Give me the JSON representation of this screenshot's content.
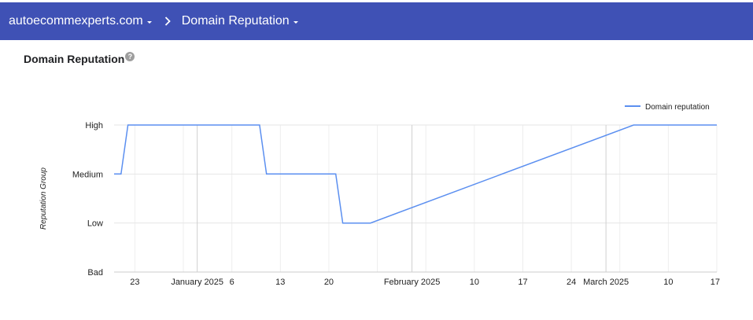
{
  "topbar": {
    "domain": "autoecommexperts.com",
    "separator": ">",
    "section": "Domain Reputation"
  },
  "card": {
    "title": "Domain Reputation",
    "help_icon": "help-circle-icon",
    "help_glyph": "?"
  },
  "colors": {
    "topbar": "#3f51b5",
    "series": "#5b8ff0",
    "grid": "#e6e6e6"
  },
  "chart_data": {
    "type": "line",
    "title": "",
    "ylabel": "Reputation Group",
    "xlabel": "",
    "y_categories": [
      "Bad",
      "Low",
      "Medium",
      "High"
    ],
    "x_range": [
      "2024-12-20",
      "2025-03-17"
    ],
    "x_ticks": [
      {
        "date": "2024-12-23",
        "label": "23"
      },
      {
        "date": "2025-01-01",
        "label": "January 2025"
      },
      {
        "date": "2025-01-06",
        "label": "6"
      },
      {
        "date": "2025-01-13",
        "label": "13"
      },
      {
        "date": "2025-01-20",
        "label": "20"
      },
      {
        "date": "2025-02-01",
        "label": "February 2025"
      },
      {
        "date": "2025-02-10",
        "label": "10"
      },
      {
        "date": "2025-02-17",
        "label": "17"
      },
      {
        "date": "2025-02-24",
        "label": "24"
      },
      {
        "date": "2025-03-01",
        "label": "March 2025"
      },
      {
        "date": "2025-03-10",
        "label": "10"
      },
      {
        "date": "2025-03-17",
        "label": "17"
      }
    ],
    "legend": {
      "position": "top-right"
    },
    "series": [
      {
        "name": "Domain reputation",
        "points": [
          {
            "x": "2024-12-20",
            "y": "Medium"
          },
          {
            "x": "2024-12-21",
            "y": "Medium"
          },
          {
            "x": "2024-12-22",
            "y": "High"
          },
          {
            "x": "2025-01-10",
            "y": "High"
          },
          {
            "x": "2025-01-11",
            "y": "Medium"
          },
          {
            "x": "2025-01-21",
            "y": "Medium"
          },
          {
            "x": "2025-01-22",
            "y": "Low"
          },
          {
            "x": "2025-01-26",
            "y": "Low"
          },
          {
            "x": "2025-03-05",
            "y": "High"
          },
          {
            "x": "2025-03-17",
            "y": "High"
          }
        ]
      }
    ]
  }
}
